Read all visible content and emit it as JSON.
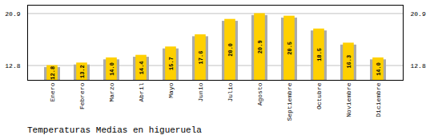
{
  "chart_data": {
    "type": "bar",
    "title": "Temperaturas Medias en higueruela",
    "categories": [
      "Enero",
      "Febrero",
      "Marzo",
      "Abril",
      "Mayo",
      "Junio",
      "Julio",
      "Agosto",
      "Septiembre",
      "Octubre",
      "Noviembre",
      "Diciembre"
    ],
    "series": [
      {
        "color": "#AAAAAA",
        "values": [
          12.5,
          12.9,
          13.7,
          14.1,
          15.4,
          17.3,
          19.7,
          20.6,
          20.2,
          18.2,
          16.0,
          13.7
        ]
      },
      {
        "color": "#FFD000",
        "values": [
          12.8,
          13.2,
          14.0,
          14.4,
          15.7,
          17.6,
          20.0,
          20.9,
          20.5,
          18.5,
          16.3,
          14.0
        ],
        "value_labels": [
          "12.8",
          "13.2",
          "14.0",
          "14.4",
          "15.7",
          "17.6",
          "20.0",
          "20.9",
          "20.5",
          "18.5",
          "16.3",
          "14.0"
        ],
        "data_labels": true
      }
    ],
    "ylim": [
      10.5,
      22.2
    ],
    "yticks": [
      12.8,
      20.9
    ],
    "grid": true
  }
}
